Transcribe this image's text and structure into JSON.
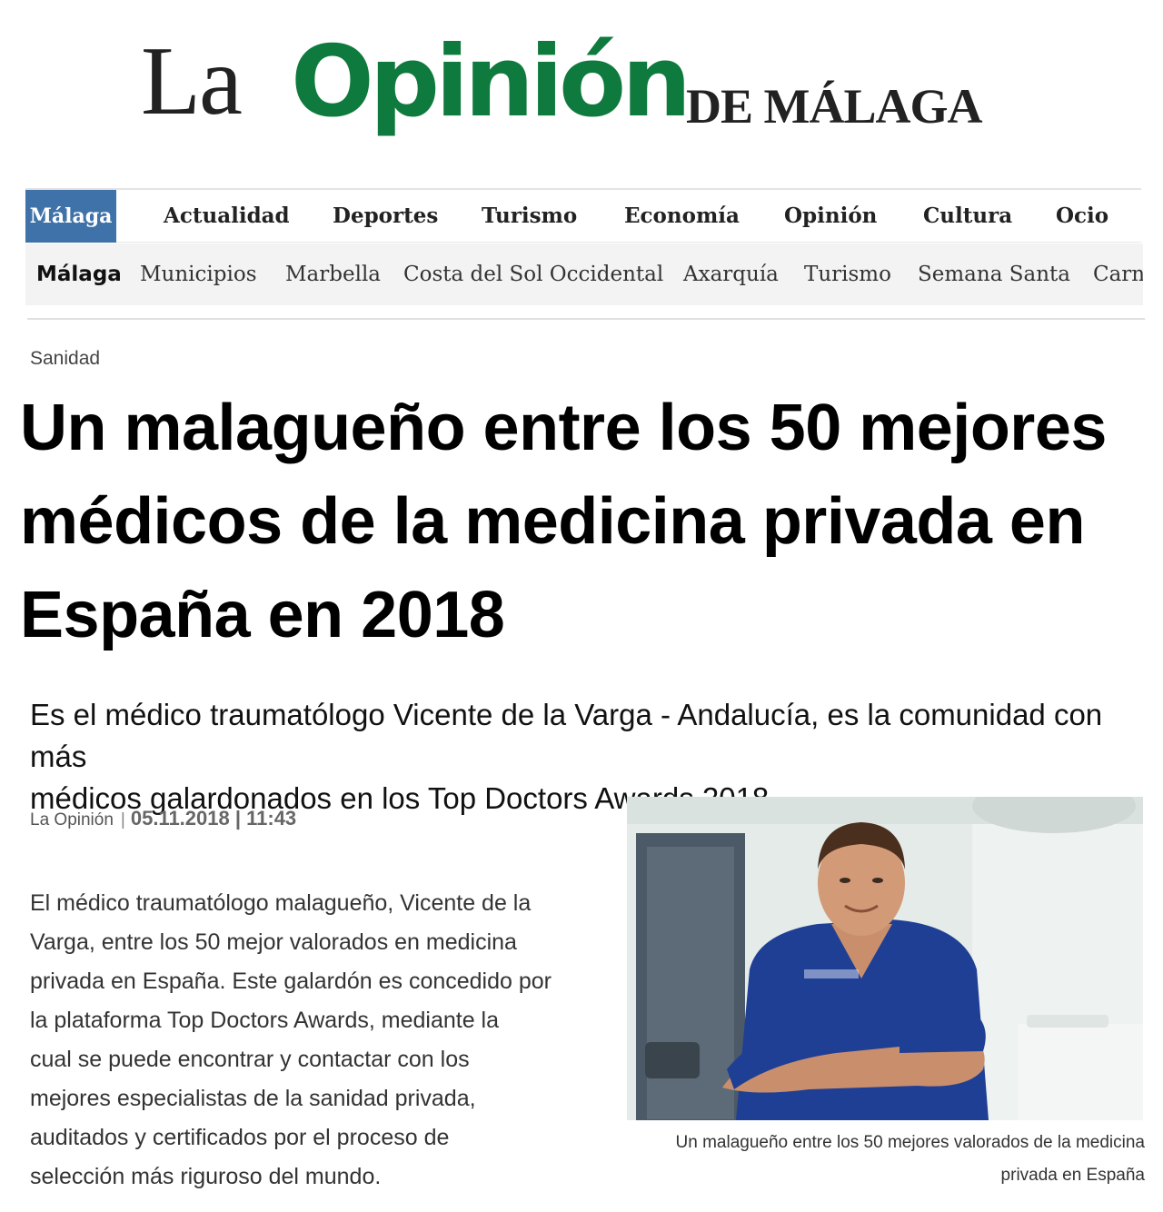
{
  "logo": {
    "la": "La",
    "opinion": "Opinión",
    "de_malaga": "DE MÁLAGA"
  },
  "nav_primary": [
    "Málaga",
    "Actualidad",
    "Deportes",
    "Turismo",
    "Economía",
    "Opinión",
    "Cultura",
    "Ocio"
  ],
  "nav_secondary": [
    "Málaga",
    "Municipios",
    "Marbella",
    "Costa del Sol Occidental",
    "Axarquía",
    "Turismo",
    "Semana Santa",
    "Carn"
  ],
  "article": {
    "section": "Sanidad",
    "headline_lines": [
      "Un malagueño entre los 50 mejores",
      "médicos de la medicina privada en",
      "España en 2018"
    ],
    "subtitle_lines": [
      "Es el médico traumatólogo Vicente de la Varga - Andalucía, es la comunidad con más",
      "médicos galardonados en los Top Doctors Awards 2018"
    ],
    "source": "La Opinión",
    "separator": "|",
    "datetime": "05.11.2018 | 11:43",
    "body_lines": [
      "El médico traumatólogo malagueño, Vicente de la",
      "Varga, entre los 50 mejor valorados en medicina",
      "privada en España. Este galardón es concedido por",
      "la plataforma Top Doctors Awards, mediante la",
      "cual se puede encontrar y contactar con los",
      "mejores especialistas de la sanidad privada,",
      "auditados y certificados por el proceso de",
      "selección más riguroso del mundo."
    ],
    "caption_lines": [
      "Un malagueño entre los 50 mejores valorados de la medicina",
      "privada en España"
    ]
  },
  "colors": {
    "brand_green": "#0f7a3d",
    "nav_active": "#3f72a8",
    "scrubs": "#1f3f95"
  }
}
